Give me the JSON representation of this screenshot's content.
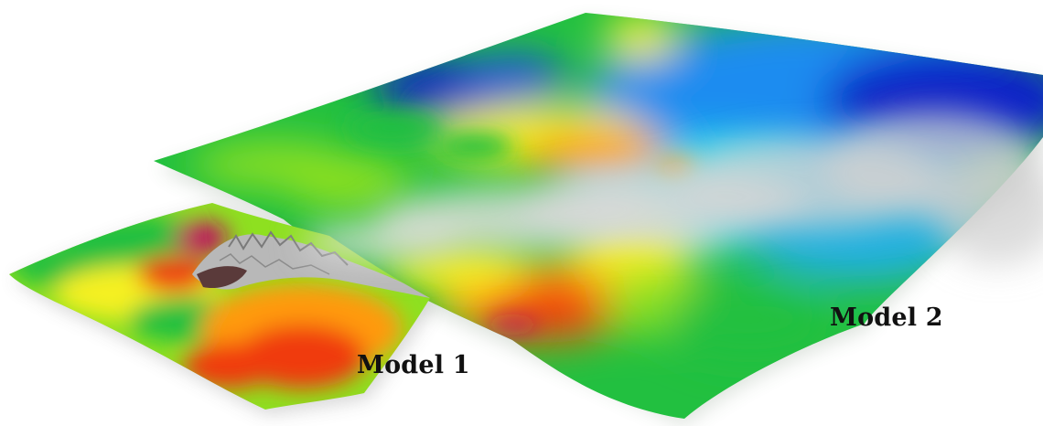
{
  "figure": {
    "labels": {
      "model_1": "Model 1",
      "model_2": "Model 2"
    },
    "colormap": [
      "#1020c8",
      "#1a8cf0",
      "#22d8e8",
      "#22c040",
      "#8ee020",
      "#f5f020",
      "#ff9a10",
      "#f03a10",
      "#c01060"
    ],
    "smoke_color": "#dcdcdc",
    "terrain_peak_color": "#b8b8b8",
    "background": "#ffffff"
  }
}
